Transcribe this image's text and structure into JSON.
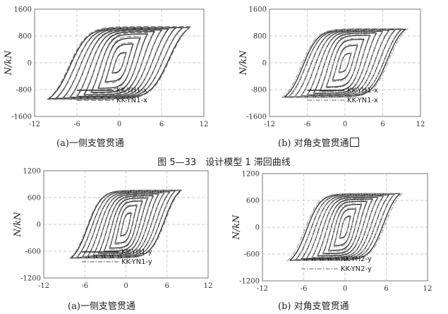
{
  "figure_title": "图 5—33　设计模型 1 滞回曲线",
  "chart_data": [
    {
      "type": "line",
      "title": "",
      "caption": "(a)一侧支管贯通",
      "xlabel": "",
      "ylabel": "N/kN",
      "xlim": [
        -12,
        12
      ],
      "ylim": [
        -1600,
        1600
      ],
      "xticks": [
        "-12",
        "-6",
        "0",
        "6",
        "12"
      ],
      "yticks": [
        "1600",
        "800",
        "0",
        "-800",
        "-1600"
      ],
      "grid": true,
      "legend_position": "bottom-right",
      "series": [
        {
          "name": "KK-YH1-x",
          "color": "#2b2b2b",
          "style": "solid",
          "cycles": [
            {
              "amp": 1.0,
              "peak": 300,
              "trough": -300
            },
            {
              "amp": 2.0,
              "peak": 560,
              "trough": -560
            },
            {
              "amp": 3.0,
              "peak": 740,
              "trough": -760
            },
            {
              "amp": 4.0,
              "peak": 860,
              "trough": -880
            },
            {
              "amp": 5.0,
              "peak": 930,
              "trough": -950
            },
            {
              "amp": 6.0,
              "peak": 980,
              "trough": -1000
            },
            {
              "amp": 7.0,
              "peak": 1010,
              "trough": -1030
            },
            {
              "amp": 8.0,
              "peak": 1040,
              "trough": -1050
            },
            {
              "amp": 9.0,
              "peak": 1050,
              "trough": -1060
            },
            {
              "amp": 10.0,
              "peak": 1050,
              "trough": -1070
            }
          ]
        },
        {
          "name": "KK-YN1-x",
          "color": "#7a7a7a",
          "style": "dashed",
          "cycles": [
            {
              "amp": 1.0,
              "peak": 320,
              "trough": -320
            },
            {
              "amp": 2.0,
              "peak": 600,
              "trough": -600
            },
            {
              "amp": 3.0,
              "peak": 790,
              "trough": -800
            },
            {
              "amp": 4.0,
              "peak": 900,
              "trough": -910
            },
            {
              "amp": 5.0,
              "peak": 960,
              "trough": -980
            },
            {
              "amp": 6.0,
              "peak": 1000,
              "trough": -1020
            },
            {
              "amp": 7.0,
              "peak": 1040,
              "trough": -1050
            },
            {
              "amp": 8.0,
              "peak": 1060,
              "trough": -1070
            },
            {
              "amp": 9.0,
              "peak": 1070,
              "trough": -1080
            },
            {
              "amp": 10.2,
              "peak": 1080,
              "trough": -1090
            }
          ]
        }
      ]
    },
    {
      "type": "line",
      "title": "",
      "caption": "(b) 对角支管贯通",
      "xlabel": "",
      "ylabel": "N/kN",
      "xlim": [
        -12,
        12
      ],
      "ylim": [
        -1600,
        1600
      ],
      "xticks": [
        "-12",
        "-6",
        "0",
        "6",
        "12"
      ],
      "yticks": [
        "1600",
        "800",
        "0",
        "-800",
        "-1600"
      ],
      "grid": true,
      "legend_position": "bottom-right",
      "series": [
        {
          "name": "KK-YH1-x",
          "color": "#2b2b2b",
          "style": "solid",
          "cycles": [
            {
              "amp": 1.0,
              "peak": 280,
              "trough": -280
            },
            {
              "amp": 2.0,
              "peak": 520,
              "trough": -520
            },
            {
              "amp": 3.0,
              "peak": 700,
              "trough": -720
            },
            {
              "amp": 4.0,
              "peak": 820,
              "trough": -840
            },
            {
              "amp": 5.0,
              "peak": 890,
              "trough": -910
            },
            {
              "amp": 6.0,
              "peak": 940,
              "trough": -960
            },
            {
              "amp": 7.0,
              "peak": 970,
              "trough": -990
            },
            {
              "amp": 8.0,
              "peak": 990,
              "trough": -1010
            },
            {
              "amp": 9.0,
              "peak": 1000,
              "trough": -1020
            },
            {
              "amp": 9.6,
              "peak": 1000,
              "trough": -1020
            }
          ]
        },
        {
          "name": "KK-YN1-x",
          "color": "#9a9a9a",
          "style": "dashdot",
          "cycles": [
            {
              "amp": 1.0,
              "peak": 300,
              "trough": -300
            },
            {
              "amp": 2.0,
              "peak": 560,
              "trough": -560
            },
            {
              "amp": 3.0,
              "peak": 740,
              "trough": -750
            },
            {
              "amp": 4.0,
              "peak": 860,
              "trough": -870
            },
            {
              "amp": 5.0,
              "peak": 920,
              "trough": -940
            },
            {
              "amp": 6.0,
              "peak": 960,
              "trough": -980
            },
            {
              "amp": 7.0,
              "peak": 990,
              "trough": -1000
            },
            {
              "amp": 8.0,
              "peak": 1010,
              "trough": -1020
            },
            {
              "amp": 9.0,
              "peak": 1020,
              "trough": -1030
            },
            {
              "amp": 10.0,
              "peak": 1020,
              "trough": -1040
            }
          ]
        }
      ]
    },
    {
      "type": "line",
      "title": "",
      "caption": "(a)一侧支管贯通",
      "xlabel": "",
      "ylabel": "N/kN",
      "xlim": [
        -12,
        12
      ],
      "ylim": [
        -1200,
        1200
      ],
      "xticks": [
        "-12",
        "-6",
        "0",
        "6",
        "12"
      ],
      "yticks": [
        "1200",
        "600",
        "0",
        "-600",
        "-1200"
      ],
      "grid": true,
      "legend_position": "bottom-right",
      "series": [
        {
          "name": "KK-YH1-y",
          "color": "#2b2b2b",
          "style": "solid",
          "cycles": [
            {
              "amp": 0.8,
              "peak": 250,
              "trough": -250
            },
            {
              "amp": 1.6,
              "peak": 420,
              "trough": -420
            },
            {
              "amp": 2.4,
              "peak": 520,
              "trough": -530
            },
            {
              "amp": 3.2,
              "peak": 590,
              "trough": -600
            },
            {
              "amp": 4.0,
              "peak": 640,
              "trough": -650
            },
            {
              "amp": 4.8,
              "peak": 680,
              "trough": -690
            },
            {
              "amp": 5.6,
              "peak": 710,
              "trough": -710
            },
            {
              "amp": 6.4,
              "peak": 730,
              "trough": -730
            },
            {
              "amp": 7.2,
              "peak": 750,
              "trough": -740
            },
            {
              "amp": 8.0,
              "peak": 760,
              "trough": -750
            }
          ]
        },
        {
          "name": "KK-YN1-y",
          "color": "#8a8a8a",
          "style": "dashdot",
          "cycles": [
            {
              "amp": 0.8,
              "peak": 270,
              "trough": -270
            },
            {
              "amp": 1.6,
              "peak": 450,
              "trough": -450
            },
            {
              "amp": 2.4,
              "peak": 550,
              "trough": -560
            },
            {
              "amp": 3.2,
              "peak": 620,
              "trough": -620
            },
            {
              "amp": 4.0,
              "peak": 660,
              "trough": -670
            },
            {
              "amp": 4.8,
              "peak": 700,
              "trough": -700
            },
            {
              "amp": 5.6,
              "peak": 720,
              "trough": -720
            },
            {
              "amp": 6.4,
              "peak": 740,
              "trough": -740
            },
            {
              "amp": 7.2,
              "peak": 760,
              "trough": -750
            },
            {
              "amp": 8.2,
              "peak": 770,
              "trough": -760
            }
          ]
        }
      ]
    },
    {
      "type": "line",
      "title": "",
      "caption": "(b) 对角支管贯通",
      "xlabel": "",
      "ylabel": "N/kN",
      "xlim": [
        -12,
        12
      ],
      "ylim": [
        -1200,
        1200
      ],
      "xticks": [
        "-12",
        "-6",
        "0",
        "6",
        "12"
      ],
      "yticks": [
        "1200",
        "600",
        "0",
        "-600",
        "-1200"
      ],
      "grid": true,
      "legend_position": "bottom-right",
      "series": [
        {
          "name": "KK-YH2-y",
          "color": "#2b2b2b",
          "style": "solid",
          "cycles": [
            {
              "amp": 0.8,
              "peak": 240,
              "trough": -240
            },
            {
              "amp": 1.6,
              "peak": 410,
              "trough": -410
            },
            {
              "amp": 2.4,
              "peak": 510,
              "trough": -520
            },
            {
              "amp": 3.2,
              "peak": 580,
              "trough": -590
            },
            {
              "amp": 4.0,
              "peak": 630,
              "trough": -640
            },
            {
              "amp": 4.8,
              "peak": 670,
              "trough": -680
            },
            {
              "amp": 5.6,
              "peak": 700,
              "trough": -700
            },
            {
              "amp": 6.4,
              "peak": 720,
              "trough": -720
            },
            {
              "amp": 7.2,
              "peak": 740,
              "trough": -730
            },
            {
              "amp": 8.0,
              "peak": 750,
              "trough": -740
            }
          ]
        },
        {
          "name": "KK-YN2-y",
          "color": "#9a9a9a",
          "style": "dashdot",
          "cycles": [
            {
              "amp": 0.8,
              "peak": 260,
              "trough": -260
            },
            {
              "amp": 1.6,
              "peak": 440,
              "trough": -440
            },
            {
              "amp": 2.4,
              "peak": 540,
              "trough": -550
            },
            {
              "amp": 3.2,
              "peak": 610,
              "trough": -610
            },
            {
              "amp": 4.0,
              "peak": 650,
              "trough": -660
            },
            {
              "amp": 4.8,
              "peak": 690,
              "trough": -690
            },
            {
              "amp": 5.6,
              "peak": 710,
              "trough": -710
            },
            {
              "amp": 6.4,
              "peak": 730,
              "trough": -730
            },
            {
              "amp": 7.2,
              "peak": 750,
              "trough": -740
            },
            {
              "amp": 8.4,
              "peak": 760,
              "trough": -750
            }
          ]
        }
      ]
    }
  ]
}
